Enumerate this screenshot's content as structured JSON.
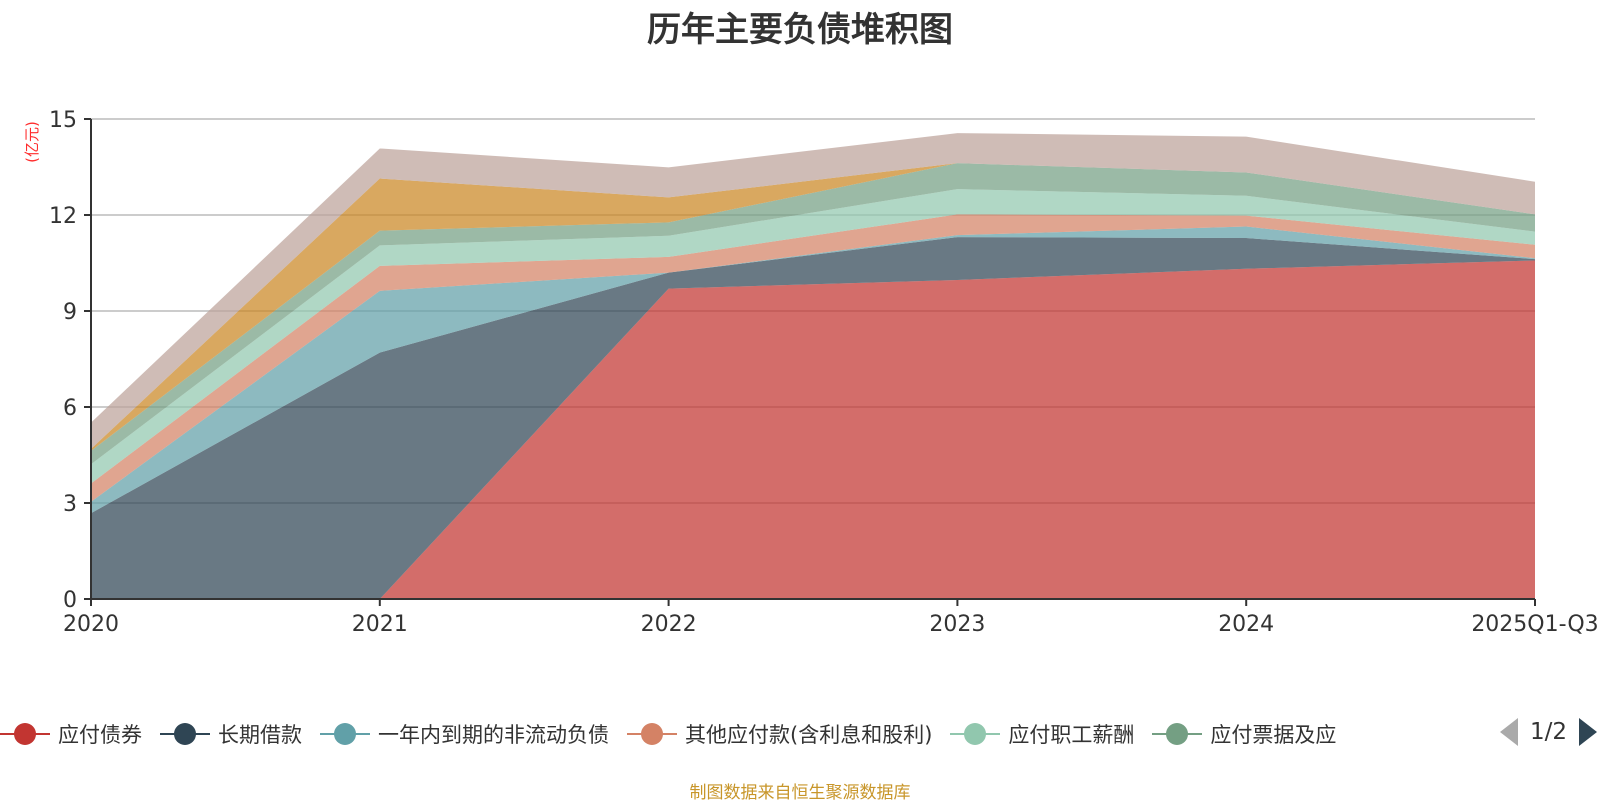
{
  "title": "历年主要负债堆积图",
  "footer": "制图数据来自恒生聚源数据库",
  "legend": {
    "items": [
      {
        "name": "应付债券",
        "color": "#c23531"
      },
      {
        "name": "长期借款",
        "color": "#2f4554"
      },
      {
        "name": "一年内到期的非流动负债",
        "color": "#61a0a8"
      },
      {
        "name": "其他应付款(含利息和股利)",
        "color": "#d48265"
      },
      {
        "name": "应付职工薪酬",
        "color": "#91c7ae"
      },
      {
        "name": "应付票据及应",
        "color": "#749f83"
      }
    ],
    "page": "1/2"
  },
  "chart_data": {
    "type": "area",
    "stacked": true,
    "title": "历年主要负债堆积图",
    "ylabel": "(亿元)",
    "xlabel": "",
    "categories": [
      "2020",
      "2021",
      "2022",
      "2023",
      "2024",
      "2025Q1-Q3"
    ],
    "ylim": [
      0,
      15
    ],
    "yticks": [
      0,
      3,
      6,
      9,
      12,
      15
    ],
    "grid": true,
    "legend_position": "bottom",
    "series": [
      {
        "name": "应付债券",
        "color": "#c23531",
        "values": [
          null,
          0,
          9.7,
          9.97,
          10.32,
          10.58
        ]
      },
      {
        "name": "长期借款",
        "color": "#2f4554",
        "values": [
          2.68,
          7.7,
          0.5,
          1.34,
          0.96,
          0.04
        ]
      },
      {
        "name": "一年内到期的非流动负债",
        "color": "#61a0a8",
        "values": [
          0.36,
          1.93,
          0.0,
          0.06,
          0.36,
          0.03
        ]
      },
      {
        "name": "其他应付款(含利息和股利)",
        "color": "#d48265",
        "values": [
          0.57,
          0.78,
          0.49,
          0.65,
          0.34,
          0.42
        ]
      },
      {
        "name": "应付职工薪酬",
        "color": "#91c7ae",
        "values": [
          0.6,
          0.64,
          0.66,
          0.79,
          0.62,
          0.41
        ]
      },
      {
        "name": "应付票据及应...",
        "color": "#749f83",
        "values": [
          0.42,
          0.46,
          0.42,
          0.81,
          0.73,
          0.54
        ]
      },
      {
        "name": "",
        "color": "#ca8622",
        "values": [
          0.06,
          1.63,
          0.78,
          0.0,
          0.0,
          0.0
        ]
      },
      {
        "name": "",
        "color": "#bda29a",
        "values": [
          0.82,
          0.94,
          0.94,
          0.94,
          1.12,
          1.02
        ]
      }
    ]
  }
}
